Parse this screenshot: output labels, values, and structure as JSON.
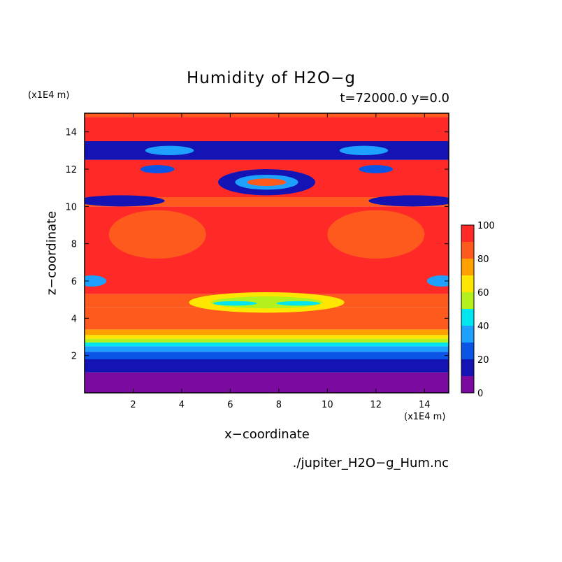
{
  "chart_data": {
    "type": "heatmap",
    "title": "Humidity of H2O−g",
    "subtitle": "t=72000.0 y=0.0",
    "xlabel": "x−coordinate",
    "ylabel": "z−coordinate",
    "x_unit": "(x1E4 m)",
    "y_unit": "(x1E4 m)",
    "xlim": [
      0,
      15
    ],
    "ylim": [
      0,
      15
    ],
    "x_ticks": [
      "2",
      "4",
      "6",
      "8",
      "10",
      "12",
      "14"
    ],
    "y_ticks": [
      "2",
      "4",
      "6",
      "8",
      "10",
      "12",
      "14"
    ],
    "colorbar": {
      "range": [
        0,
        100
      ],
      "ticks": [
        "0",
        "20",
        "40",
        "60",
        "80",
        "100"
      ],
      "levels": [
        0,
        10,
        20,
        30,
        40,
        50,
        60,
        70,
        80,
        90,
        100
      ],
      "colors": [
        "#7a0aa0",
        "#1414b4",
        "#0a55e6",
        "#1ea0ff",
        "#00e6f0",
        "#b4f01e",
        "#ffe600",
        "#ffa000",
        "#ff5a1e",
        "#ff2a28"
      ]
    },
    "z_bands": [
      {
        "z0": 0.0,
        "z1": 1.1,
        "value": 5
      },
      {
        "z0": 1.1,
        "z1": 1.8,
        "value": 15
      },
      {
        "z0": 1.8,
        "z1": 2.2,
        "value": 25
      },
      {
        "z0": 2.2,
        "z1": 2.5,
        "value": 35
      },
      {
        "z0": 2.5,
        "z1": 2.7,
        "value": 45
      },
      {
        "z0": 2.7,
        "z1": 2.9,
        "value": 55
      },
      {
        "z0": 2.9,
        "z1": 3.1,
        "value": 65
      },
      {
        "z0": 3.1,
        "z1": 3.4,
        "value": 75
      },
      {
        "z0": 3.4,
        "z1": 4.6,
        "value": 85
      },
      {
        "z0": 4.6,
        "z1": 5.3,
        "value": 88
      },
      {
        "z0": 5.3,
        "z1": 10.0,
        "value": 95
      },
      {
        "z0": 10.0,
        "z1": 10.5,
        "value": 85
      },
      {
        "z0": 10.5,
        "z1": 12.5,
        "value": 95
      },
      {
        "z0": 12.5,
        "z1": 13.5,
        "value": 15
      },
      {
        "z0": 13.5,
        "z1": 14.8,
        "value": 95
      },
      {
        "z0": 14.8,
        "z1": 15.0,
        "value": 88
      }
    ],
    "features": [
      {
        "cx": 7.5,
        "cz": 4.85,
        "rx": 3.2,
        "rz": 0.55,
        "value": 65
      },
      {
        "cx": 7.5,
        "cz": 4.85,
        "rx": 2.3,
        "rz": 0.32,
        "value": 55
      },
      {
        "cx": 6.2,
        "cz": 4.8,
        "rx": 0.9,
        "rz": 0.12,
        "value": 45
      },
      {
        "cx": 8.8,
        "cz": 4.8,
        "rx": 0.9,
        "rz": 0.12,
        "value": 45
      },
      {
        "cx": 7.5,
        "cz": 11.3,
        "rx": 2.0,
        "rz": 0.7,
        "value": 15
      },
      {
        "cx": 7.5,
        "cz": 11.3,
        "rx": 1.3,
        "rz": 0.4,
        "value": 35
      },
      {
        "cx": 7.5,
        "cz": 11.3,
        "rx": 0.8,
        "rz": 0.2,
        "value": 85
      },
      {
        "cx": 3.0,
        "cz": 12.0,
        "rx": 0.7,
        "rz": 0.22,
        "value": 25
      },
      {
        "cx": 12.0,
        "cz": 12.0,
        "rx": 0.7,
        "rz": 0.22,
        "value": 25
      },
      {
        "cx": 1.5,
        "cz": 10.3,
        "rx": 1.8,
        "rz": 0.3,
        "value": 15
      },
      {
        "cx": 13.5,
        "cz": 10.3,
        "rx": 1.8,
        "rz": 0.3,
        "value": 15
      },
      {
        "cx": 0.3,
        "cz": 6.0,
        "rx": 0.6,
        "rz": 0.3,
        "value": 35
      },
      {
        "cx": 14.7,
        "cz": 6.0,
        "rx": 0.6,
        "rz": 0.3,
        "value": 35
      },
      {
        "cx": 3.5,
        "cz": 13.0,
        "rx": 1.0,
        "rz": 0.25,
        "value": 35
      },
      {
        "cx": 11.5,
        "cz": 13.0,
        "rx": 1.0,
        "rz": 0.25,
        "value": 35
      },
      {
        "cx": 3.0,
        "cz": 8.5,
        "rx": 2.0,
        "rz": 1.3,
        "value": 85
      },
      {
        "cx": 12.0,
        "cz": 8.5,
        "rx": 2.0,
        "rz": 1.3,
        "value": 85
      }
    ],
    "source_file": "./jupiter_H2O−g_Hum.nc"
  }
}
